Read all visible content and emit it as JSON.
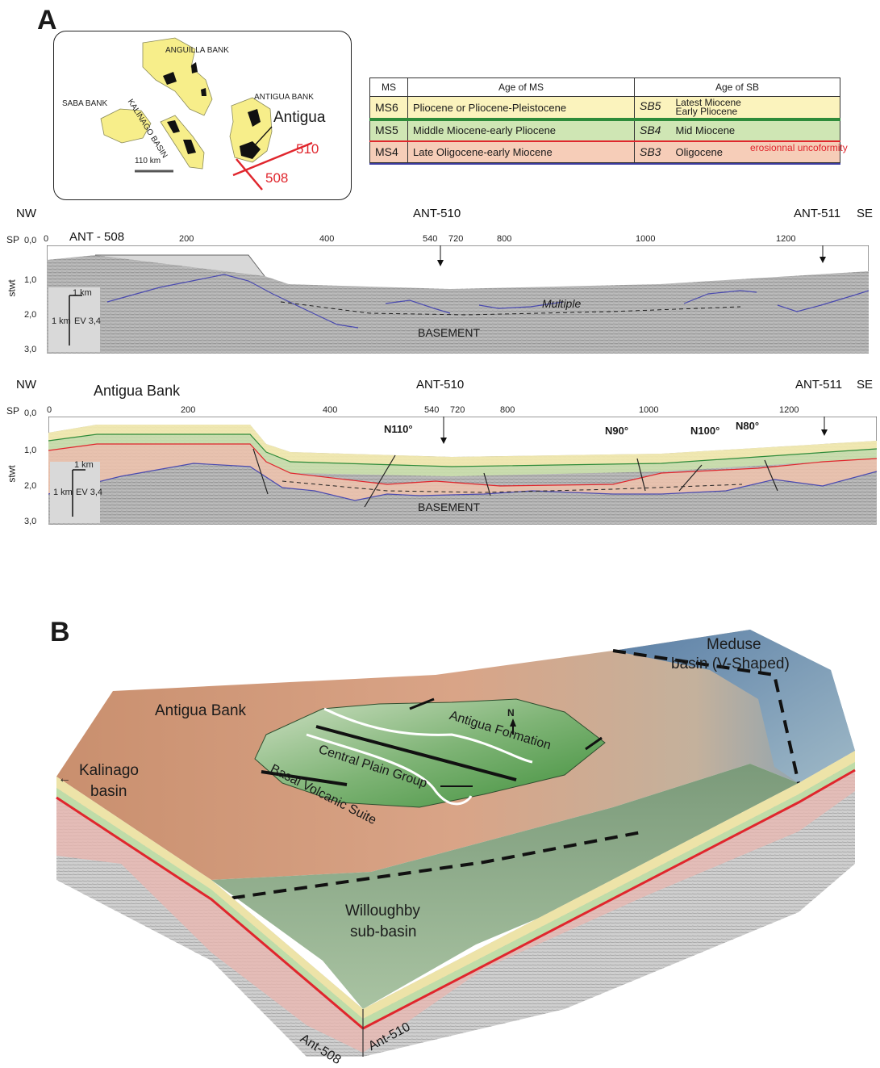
{
  "panel_a": {
    "letter": "A",
    "map": {
      "labels": {
        "anguilla_bank": "ANGUILLA BANK",
        "saba_bank": "SABA BANK",
        "kalinago_basin": "KALINAGO BASIN",
        "antigua_bank": "ANTIGUA BANK",
        "antigua": "Antigua",
        "line_510": "510",
        "line_508": "508",
        "scale": "110 km"
      },
      "colors": {
        "bank": "#f7ee8a",
        "island": "#111111",
        "profile_line": "#e0262d"
      }
    },
    "legend": {
      "headers": [
        "MS",
        "Age of MS",
        "Age of SB"
      ],
      "rows": [
        {
          "ms": "MS6",
          "age_ms": "Pliocene or Pliocene-Pleistocene",
          "sb": "SB5",
          "age_sb": "Latest Miocene",
          "age_sb2": "Early Pliocene",
          "color": "#fbf3bd",
          "line_color": "#2e8b3a"
        },
        {
          "ms": "MS5",
          "age_ms": "Middle Miocene-early Pliocene",
          "sb": "SB4",
          "age_sb": "Mid Miocene",
          "age_sb2": "",
          "color": "#cfe6b4",
          "line_color": "#e0262d"
        },
        {
          "ms": "MS4",
          "age_ms": "Late Oligocene-early Miocene",
          "sb": "SB3",
          "age_sb": "Oligocene",
          "age_sb2": "",
          "color": "#f6cdb8",
          "line_color": "#3b3b9e"
        }
      ],
      "note": "erosionnal uncoformity",
      "note_color": "#e0262d"
    },
    "profile_top": {
      "nw": "NW",
      "se": "SE",
      "title_left": "ANT - 508",
      "marker_mid": "ANT-510",
      "marker_right": "ANT-511",
      "sp_label": "SP",
      "sp_ticks": [
        "0",
        "200",
        "400",
        "540",
        "720",
        "800",
        "1000",
        "1200"
      ],
      "y_label": "stwt",
      "y_ticks": [
        "0,0",
        "1,0",
        "2,0",
        "3,0"
      ],
      "scale_h": "1 km",
      "scale_v": "1 km",
      "ev": "EV 3,4",
      "multiple": "Multiple",
      "basement": "BASEMENT"
    },
    "profile_bottom": {
      "nw": "NW",
      "se": "SE",
      "title_left": "Antigua Bank",
      "marker_mid": "ANT-510",
      "marker_right": "ANT-511",
      "sp_label": "SP",
      "sp_ticks": [
        "0",
        "200",
        "400",
        "540",
        "720",
        "800",
        "1000",
        "1200"
      ],
      "y_label": "stwt",
      "y_ticks": [
        "0,0",
        "1,0",
        "2,0",
        "3,0"
      ],
      "scale_h": "1 km",
      "scale_v": "1 km",
      "ev": "EV 3,4",
      "azimuths": [
        "N110°",
        "N90°",
        "N100°",
        "N80°"
      ],
      "basement": "BASEMENT"
    }
  },
  "panel_b": {
    "letter": "B",
    "labels": {
      "antigua_bank": "Antigua Bank",
      "kalinago": "Kalinago",
      "basin": "basin",
      "meduse_1": "Meduse",
      "meduse_2": "basin (V-Shaped)",
      "central_plain": "Central Plain Group",
      "antigua_formation": "Antigua Formation",
      "basal_volcanic": "Basal Volcanic Suite",
      "willoughby_1": "Willoughby",
      "willoughby_2": "sub-basin",
      "north": "N",
      "ant508": "Ant-508",
      "ant510": "Ant-510"
    }
  }
}
